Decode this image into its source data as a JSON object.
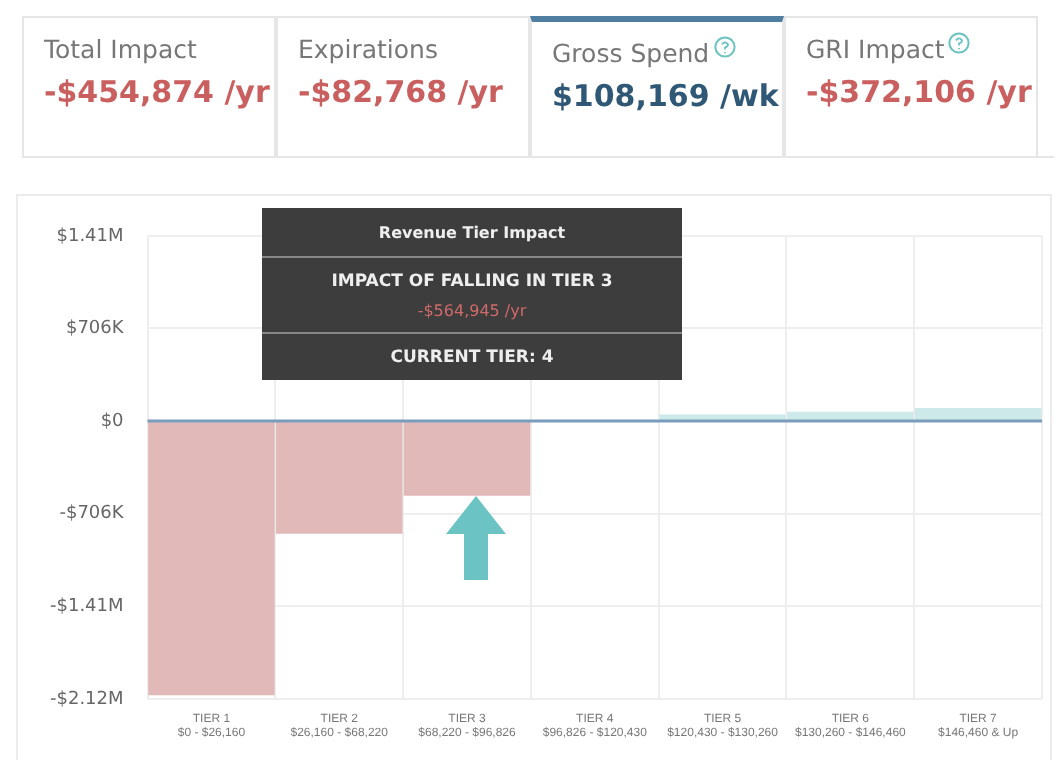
{
  "chart_data": [
    {
      "type": "other",
      "annotations": [
        "Total Impact",
        "-$454,874 /yr",
        "Expirations",
        "-$82,768 /yr",
        "Gross Spend",
        "$108,169 /wk",
        "GRI Impact",
        "-$372,106 /yr"
      ]
    },
    {
      "type": "bar",
      "categories": [
        "TIER 1\n$0 - $26,160",
        "TIER 2\n$26,160 - $68,220",
        "TIER 3\n$68,220 - $96,826",
        "TIER 4\n$96,826 - $120,430",
        "TIER 5\n$120,430 - $130,260",
        "TIER 6\n$130,260 - $146,460",
        "TIER 7\n$146,460 & Up"
      ],
      "values": [
        -2090000,
        -860000,
        -570000,
        0,
        50000,
        70000,
        100000
      ],
      "colors": [
        "#e2b9b9",
        "#e2b9b9",
        "#e2b9b9",
        "#cde9ea",
        "#cde9ea",
        "#cde9ea",
        "#cde9ea"
      ],
      "ylim": [
        -2120000,
        1410000
      ],
      "yticks": [
        {
          "value": 1410000,
          "label": "$1.41M"
        },
        {
          "value": 706000,
          "label": "$706K"
        },
        {
          "value": 0,
          "label": "$0"
        },
        {
          "value": -706000,
          "label": "-$706K"
        },
        {
          "value": -1410000,
          "label": "-$1.41M"
        },
        {
          "value": -2120000,
          "label": "-$2.12M"
        }
      ],
      "grid": true,
      "legend": false,
      "ref_lines": [
        {
          "axis": "y",
          "value": 0,
          "color": "#7b9dbd"
        }
      ],
      "annotations": [
        "Revenue Tier Impact",
        "IMPACT OF FALLING IN TIER 3",
        "-$564,945 /yr",
        "CURRENT TIER: 4"
      ]
    }
  ]
}
